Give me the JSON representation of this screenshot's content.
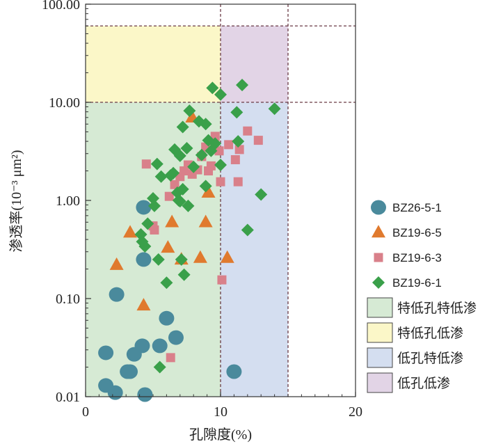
{
  "chart_data": {
    "type": "scatter",
    "xlabel": "孔隙度(%)",
    "ylabel": "渗透率(10⁻³ μm²)",
    "x_ticks": [
      "0",
      "10",
      "20"
    ],
    "y_ticks": [
      "0.01",
      "0.10",
      "1.00",
      "10.00",
      "100.00"
    ],
    "xlim": [
      0,
      20
    ],
    "ylim": [
      0.01,
      100
    ],
    "y_scale": "log",
    "legend_position": "right",
    "zones": [
      {
        "name": "特低孔特低渗",
        "x": [
          0,
          10
        ],
        "y": [
          0.01,
          10
        ],
        "color": "#d6ead4"
      },
      {
        "name": "特低孔低渗",
        "x": [
          0,
          10
        ],
        "y": [
          10,
          60
        ],
        "color": "#fbf7c8"
      },
      {
        "name": "低孔特低渗",
        "x": [
          10,
          15
        ],
        "y": [
          0.01,
          10
        ],
        "color": "#d4def0"
      },
      {
        "name": "低孔低渗",
        "x": [
          10,
          15
        ],
        "y": [
          10,
          60
        ],
        "color": "#e2d4e6"
      }
    ],
    "reference_lines": {
      "x": [
        10,
        15
      ],
      "y": [
        10,
        60
      ]
    },
    "series": [
      {
        "name": "BZ26-5-1",
        "marker": "circle",
        "color": "#4a8a9c",
        "points": [
          [
            4.3,
            0.85
          ],
          [
            4.3,
            0.25
          ],
          [
            2.3,
            0.11
          ],
          [
            6.0,
            0.063
          ],
          [
            6.7,
            0.04
          ],
          [
            1.5,
            0.028
          ],
          [
            3.6,
            0.027
          ],
          [
            4.2,
            0.033
          ],
          [
            5.5,
            0.033
          ],
          [
            3.3,
            0.018
          ],
          [
            3.1,
            0.018
          ],
          [
            11.0,
            0.018
          ],
          [
            1.5,
            0.013
          ],
          [
            2.2,
            0.011
          ],
          [
            4.4,
            0.0105
          ]
        ]
      },
      {
        "name": "BZ19-6-5",
        "marker": "triangle",
        "color": "#e07a2e",
        "points": [
          [
            2.3,
            0.22
          ],
          [
            3.3,
            0.47
          ],
          [
            4.3,
            0.085
          ],
          [
            6.1,
            0.33
          ],
          [
            6.4,
            0.6
          ],
          [
            7.1,
            0.25
          ],
          [
            8.5,
            0.26
          ],
          [
            8.9,
            0.6
          ],
          [
            9.1,
            1.2
          ],
          [
            10.5,
            0.26
          ],
          [
            7.9,
            7.0
          ]
        ]
      },
      {
        "name": "BZ19-6-3",
        "marker": "square",
        "color": "#d9808a",
        "points": [
          [
            4.5,
            2.35
          ],
          [
            5.0,
            0.55
          ],
          [
            5.1,
            0.5
          ],
          [
            6.3,
            0.025
          ],
          [
            6.2,
            1.1
          ],
          [
            6.6,
            1.45
          ],
          [
            7.0,
            1.75
          ],
          [
            7.3,
            2.0
          ],
          [
            7.6,
            2.3
          ],
          [
            7.9,
            1.85
          ],
          [
            8.3,
            2.05
          ],
          [
            8.6,
            2.8
          ],
          [
            8.9,
            3.5
          ],
          [
            9.1,
            2.0
          ],
          [
            9.3,
            2.25
          ],
          [
            9.6,
            4.5
          ],
          [
            9.9,
            3.2
          ],
          [
            10.0,
            1.55
          ],
          [
            10.1,
            0.155
          ],
          [
            10.6,
            3.7
          ],
          [
            11.1,
            2.6
          ],
          [
            11.3,
            1.55
          ],
          [
            11.4,
            3.3
          ],
          [
            12.0,
            5.1
          ],
          [
            12.8,
            4.1
          ]
        ]
      },
      {
        "name": "BZ19-6-1",
        "marker": "diamond",
        "color": "#3aa04a",
        "points": [
          [
            4.1,
            0.45
          ],
          [
            4.2,
            0.38
          ],
          [
            4.4,
            0.34
          ],
          [
            4.6,
            0.58
          ],
          [
            5.1,
            0.88
          ],
          [
            5.0,
            1.05
          ],
          [
            5.3,
            2.35
          ],
          [
            5.6,
            1.75
          ],
          [
            5.4,
            0.25
          ],
          [
            5.5,
            0.02
          ],
          [
            6.0,
            0.145
          ],
          [
            6.3,
            1.8
          ],
          [
            6.6,
            3.3
          ],
          [
            6.8,
            1.2
          ],
          [
            6.9,
            1.0
          ],
          [
            7.0,
            0.98
          ],
          [
            7.1,
            0.25
          ],
          [
            7.2,
            1.3
          ],
          [
            7.3,
            0.175
          ],
          [
            7.6,
            0.88
          ],
          [
            7.0,
            2.85
          ],
          [
            7.2,
            5.6
          ],
          [
            7.5,
            3.4
          ],
          [
            7.7,
            8.2
          ],
          [
            8.0,
            2.2
          ],
          [
            8.4,
            6.4
          ],
          [
            8.6,
            2.9
          ],
          [
            8.9,
            1.4
          ],
          [
            8.9,
            6.0
          ],
          [
            9.1,
            4.1
          ],
          [
            9.3,
            3.2
          ],
          [
            9.4,
            14.0
          ],
          [
            9.6,
            3.8
          ],
          [
            10.0,
            12.0
          ],
          [
            10.0,
            2.3
          ],
          [
            11.2,
            7.9
          ],
          [
            11.3,
            4.0
          ],
          [
            11.6,
            15.0
          ],
          [
            12.0,
            0.5
          ],
          [
            13.0,
            1.15
          ],
          [
            14.0,
            8.6
          ],
          [
            6.5,
            1.9
          ]
        ]
      }
    ]
  }
}
